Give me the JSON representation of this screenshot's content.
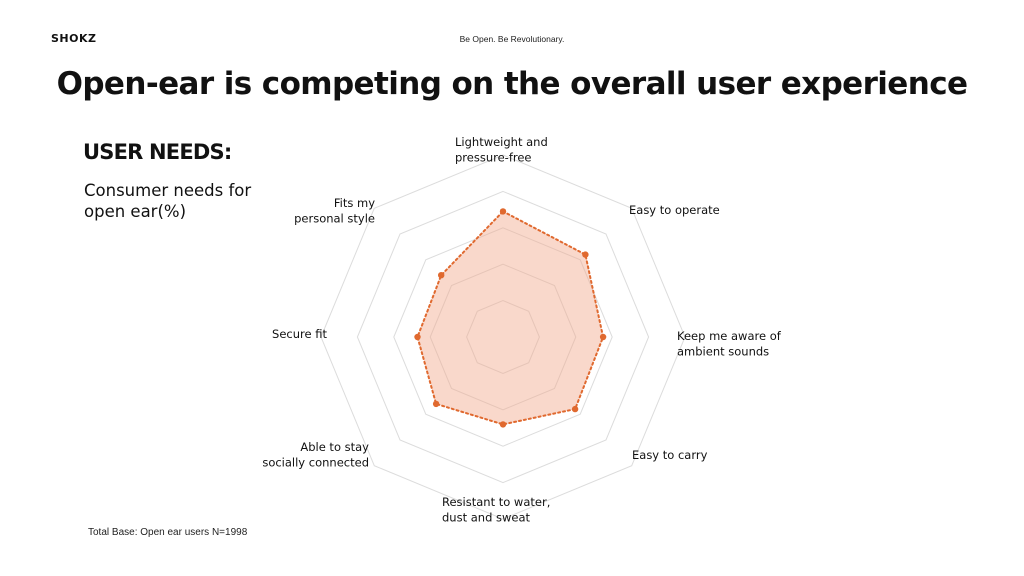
{
  "header": {
    "logo_text": "SHOKZ",
    "tagline": "Be Open. Be Revolutionary.",
    "title": "Open-ear is competing on the overall user experience"
  },
  "section": {
    "heading": "USER NEEDS:",
    "subtitle": "Consumer needs for open ear(%)"
  },
  "footnote": "Total Base: Open ear users N=1998",
  "colors": {
    "fill": "#f1a98c",
    "line": "#e0692f",
    "marker": "#e0692f",
    "grid": "#dcdcdc"
  },
  "chart_data": {
    "type": "radar",
    "title": "",
    "axes": [
      "Lightweight and pressure-free",
      "Easy to operate",
      "Keep me aware of ambient sounds",
      "Easy to carry",
      "Resistant to water, dust and sweat",
      "Able to stay socially connected",
      "Secure fit",
      "Fits my personal style"
    ],
    "axis_label_lines": [
      [
        "Lightweight and",
        "pressure-free"
      ],
      [
        "Easy to operate"
      ],
      [
        "Keep me aware of",
        "ambient sounds"
      ],
      [
        "Easy to carry"
      ],
      [
        "Resistant to water,",
        "dust and sweat"
      ],
      [
        "Able to stay",
        "socially connected"
      ],
      [
        "Secure fit"
      ],
      [
        "Fits my",
        "personal style"
      ]
    ],
    "series": [
      {
        "values": [
          69,
          64,
          55,
          56,
          48,
          52,
          47,
          48
        ]
      }
    ],
    "range": [
      0,
      100
    ],
    "grid_rings": 5,
    "grid": true,
    "legend": false
  }
}
